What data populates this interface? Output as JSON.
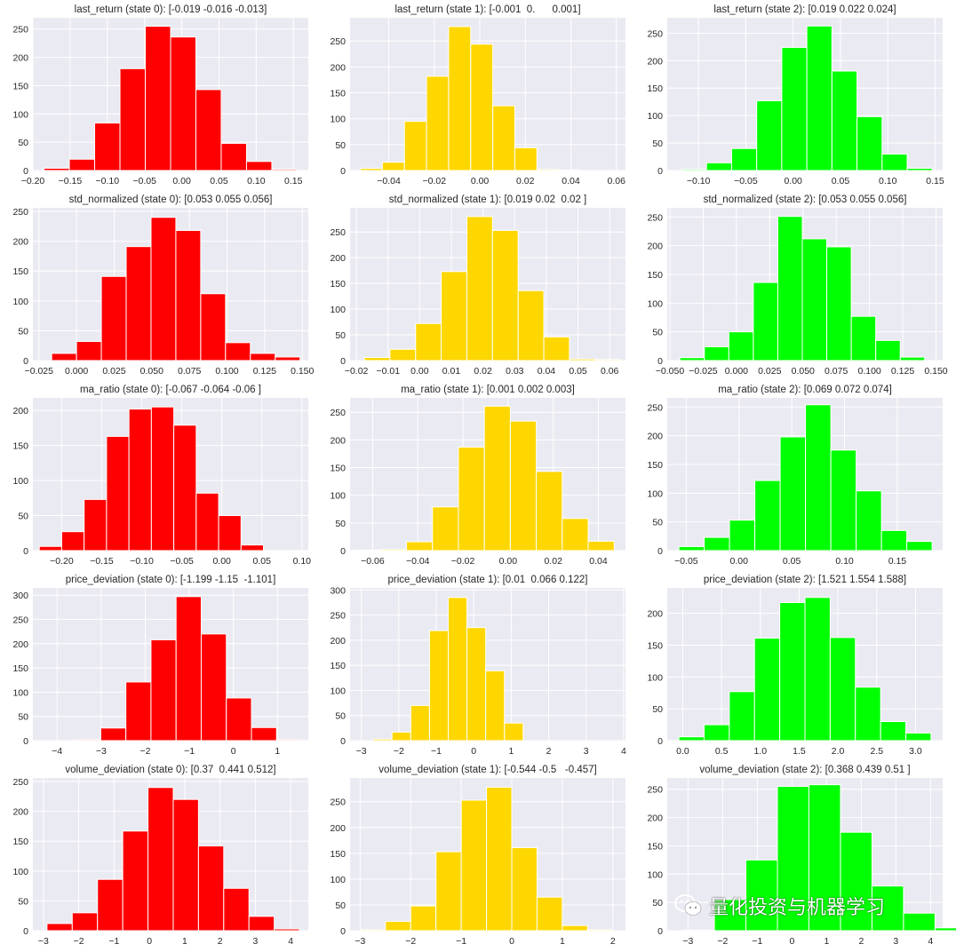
{
  "colors": {
    "state0": "#ff0000",
    "state1": "#ffd700",
    "state2": "#00ff00"
  },
  "watermark": {
    "text": "量化投资与机器学习",
    "icon": "wechat-icon"
  },
  "chart_data": [
    {
      "type": "bar",
      "title": "last_return (state 0): [-0.019 -0.016 -0.013]",
      "color": "state0",
      "edges": [
        -0.185,
        -0.151,
        -0.117,
        -0.083,
        -0.049,
        -0.015,
        0.019,
        0.053,
        0.087,
        0.121,
        0.155
      ],
      "values": [
        4,
        20,
        84,
        180,
        255,
        236,
        143,
        48,
        16,
        2
      ],
      "xlim": [
        -0.2,
        0.17
      ],
      "ylim": [
        0,
        270
      ],
      "xticks": [
        -0.2,
        -0.15,
        -0.1,
        -0.05,
        0.0,
        0.05,
        0.1,
        0.15
      ],
      "xtick_labels": [
        "−0.20",
        "−0.15",
        "−0.10",
        "−0.05",
        "0.00",
        "0.05",
        "0.10",
        "0.15"
      ],
      "yticks": [
        0,
        50,
        100,
        150,
        200,
        250
      ],
      "ytick_labels": [
        "0",
        "50",
        "100",
        "150",
        "200",
        "250"
      ]
    },
    {
      "type": "bar",
      "title": "last_return (state 1): [-0.001  0.      0.001]",
      "color": "state1",
      "edges": [
        -0.0525,
        -0.0428,
        -0.0331,
        -0.0234,
        -0.0137,
        -0.004,
        0.0057,
        0.0154,
        0.0251,
        0.0348,
        0.0445,
        0.0542,
        0.0639
      ],
      "values": [
        4,
        16,
        95,
        182,
        278,
        244,
        125,
        44,
        2,
        1,
        0,
        0
      ],
      "xlim": [
        -0.057,
        0.064
      ],
      "ylim": [
        0,
        295
      ],
      "xticks": [
        -0.04,
        -0.02,
        0.0,
        0.02,
        0.04,
        0.06
      ],
      "xtick_labels": [
        "−0.04",
        "−0.02",
        "0.00",
        "0.02",
        "0.04",
        "0.06"
      ],
      "yticks": [
        0,
        50,
        100,
        150,
        200,
        250
      ],
      "ytick_labels": [
        "0",
        "50",
        "100",
        "150",
        "200",
        "250"
      ]
    },
    {
      "type": "bar",
      "title": "last_return (state 2): [0.019 0.022 0.024]",
      "color": "state2",
      "edges": [
        -0.118,
        -0.0915,
        -0.065,
        -0.0385,
        -0.012,
        0.0145,
        0.041,
        0.0675,
        0.094,
        0.1205,
        0.147
      ],
      "values": [
        2,
        14,
        40,
        127,
        224,
        263,
        181,
        98,
        30,
        4
      ],
      "xlim": [
        -0.133,
        0.158
      ],
      "ylim": [
        0,
        278
      ],
      "xticks": [
        -0.1,
        -0.05,
        0.0,
        0.05,
        0.1,
        0.15
      ],
      "xtick_labels": [
        "−0.10",
        "−0.05",
        "0.00",
        "0.05",
        "0.10",
        "0.15"
      ],
      "yticks": [
        0,
        50,
        100,
        150,
        200,
        250
      ],
      "ytick_labels": [
        "0",
        "50",
        "100",
        "150",
        "200",
        "250"
      ]
    },
    {
      "type": "bar",
      "title": "std_normalized (state 0): [0.053 0.055 0.056]",
      "color": "state0",
      "edges": [
        -0.0165,
        0.0,
        0.0165,
        0.033,
        0.0495,
        0.066,
        0.0825,
        0.099,
        0.1155,
        0.132,
        0.1485
      ],
      "values": [
        12,
        32,
        141,
        191,
        240,
        218,
        112,
        30,
        12,
        6
      ],
      "xlim": [
        -0.029,
        0.154
      ],
      "ylim": [
        0,
        256
      ],
      "xticks": [
        -0.025,
        0.0,
        0.025,
        0.05,
        0.075,
        0.1,
        0.125,
        0.15
      ],
      "xtick_labels": [
        "−0.025",
        "0.000",
        "0.025",
        "0.050",
        "0.075",
        "0.100",
        "0.125",
        "0.150"
      ],
      "yticks": [
        0,
        50,
        100,
        150,
        200,
        250
      ],
      "ytick_labels": [
        "0",
        "50",
        "100",
        "150",
        "200",
        "250"
      ]
    },
    {
      "type": "bar",
      "title": "std_normalized (state 1): [0.019 0.02  0.02 ]",
      "color": "state1",
      "edges": [
        -0.0175,
        -0.0094,
        -0.0013,
        0.0068,
        0.0149,
        0.023,
        0.0311,
        0.0392,
        0.0473,
        0.0554,
        0.0635
      ],
      "values": [
        6,
        22,
        72,
        173,
        280,
        253,
        136,
        46,
        3,
        2
      ],
      "xlim": [
        -0.022,
        0.065
      ],
      "ylim": [
        0,
        297
      ],
      "xticks": [
        -0.02,
        -0.01,
        0.0,
        0.01,
        0.02,
        0.03,
        0.04,
        0.05,
        0.06
      ],
      "xtick_labels": [
        "−0.02",
        "−0.01",
        "0.00",
        "0.01",
        "0.02",
        "0.03",
        "0.04",
        "0.05",
        "0.06"
      ],
      "yticks": [
        0,
        50,
        100,
        150,
        200,
        250
      ],
      "ytick_labels": [
        "0",
        "50",
        "100",
        "150",
        "200",
        "250"
      ]
    },
    {
      "type": "bar",
      "title": "std_normalized (state 2): [0.053 0.055 0.056]",
      "color": "state2",
      "edges": [
        -0.0425,
        -0.0241,
        -0.0057,
        0.0127,
        0.0311,
        0.0495,
        0.0679,
        0.0863,
        0.1047,
        0.1231,
        0.1415
      ],
      "values": [
        5,
        24,
        50,
        136,
        251,
        212,
        198,
        77,
        35,
        6
      ],
      "xlim": [
        -0.052,
        0.155
      ],
      "ylim": [
        0,
        266
      ],
      "xticks": [
        -0.05,
        -0.025,
        0.0,
        0.025,
        0.05,
        0.075,
        0.1,
        0.125,
        0.15
      ],
      "xtick_labels": [
        "−0.050",
        "−0.025",
        "0.000",
        "0.025",
        "0.050",
        "0.075",
        "0.100",
        "0.125",
        "0.150"
      ],
      "yticks": [
        0,
        50,
        100,
        150,
        200,
        250
      ],
      "ytick_labels": [
        "0",
        "50",
        "100",
        "150",
        "200",
        "250"
      ]
    },
    {
      "type": "bar",
      "title": "ma_ratio (state 0): [-0.067 -0.064 -0.06 ]",
      "color": "state0",
      "edges": [
        -0.228,
        -0.2,
        -0.172,
        -0.144,
        -0.116,
        -0.088,
        -0.06,
        -0.032,
        -0.004,
        0.024,
        0.052,
        0.08,
        0.1
      ],
      "values": [
        6,
        27,
        73,
        163,
        202,
        205,
        179,
        82,
        50,
        8,
        0,
        0
      ],
      "xlim": [
        -0.236,
        0.108
      ],
      "ylim": [
        0,
        218
      ],
      "xticks": [
        -0.2,
        -0.15,
        -0.1,
        -0.05,
        0.0,
        0.05,
        0.1
      ],
      "xtick_labels": [
        "−0.20",
        "−0.15",
        "−0.10",
        "−0.05",
        "0.00",
        "0.05",
        "0.10"
      ],
      "yticks": [
        0,
        50,
        100,
        150,
        200
      ],
      "ytick_labels": [
        "0",
        "50",
        "100",
        "150",
        "200"
      ]
    },
    {
      "type": "bar",
      "title": "ma_ratio (state 1): [0.001 0.002 0.003]",
      "color": "state1",
      "edges": [
        -0.068,
        -0.0565,
        -0.045,
        -0.0335,
        -0.022,
        -0.0105,
        0.001,
        0.0125,
        0.024,
        0.0355,
        0.047
      ],
      "values": [
        1,
        2,
        16,
        79,
        187,
        261,
        234,
        143,
        58,
        17
      ],
      "xlim": [
        -0.07,
        0.052
      ],
      "ylim": [
        0,
        276
      ],
      "xticks": [
        -0.06,
        -0.04,
        -0.02,
        0.0,
        0.02,
        0.04
      ],
      "xtick_labels": [
        "−0.06",
        "−0.04",
        "−0.02",
        "0.00",
        "0.02",
        "0.04"
      ],
      "yticks": [
        0,
        50,
        100,
        150,
        200,
        250
      ],
      "ytick_labels": [
        "0",
        "50",
        "100",
        "150",
        "200",
        "250"
      ]
    },
    {
      "type": "bar",
      "title": "ma_ratio (state 2): [0.069 0.072 0.074]",
      "color": "state2",
      "edges": [
        -0.057,
        -0.033,
        -0.009,
        0.015,
        0.039,
        0.063,
        0.087,
        0.111,
        0.135,
        0.159,
        0.183
      ],
      "values": [
        7,
        23,
        53,
        122,
        198,
        254,
        175,
        104,
        35,
        16
      ],
      "xlim": [
        -0.068,
        0.193
      ],
      "ylim": [
        0,
        266
      ],
      "xticks": [
        -0.05,
        0.0,
        0.05,
        0.1,
        0.15
      ],
      "xtick_labels": [
        "−0.05",
        "0.00",
        "0.05",
        "0.10",
        "0.15"
      ],
      "yticks": [
        0,
        50,
        100,
        150,
        200,
        250
      ],
      "ytick_labels": [
        "0",
        "50",
        "100",
        "150",
        "200",
        "250"
      ]
    },
    {
      "type": "bar",
      "title": "price_deviation (state 0): [-1.199 -1.15  -1.101]",
      "color": "state0",
      "edges": [
        -4.15,
        -3.58,
        -3.01,
        -2.44,
        -1.87,
        -1.3,
        -0.73,
        -0.16,
        0.41,
        0.98,
        1.55
      ],
      "values": [
        0,
        2,
        26,
        121,
        208,
        297,
        220,
        88,
        27,
        2
      ],
      "xlim": [
        -4.55,
        1.7
      ],
      "ylim": [
        0,
        315
      ],
      "xticks": [
        -4,
        -3,
        -2,
        -1,
        0,
        1
      ],
      "xtick_labels": [
        "−4",
        "−3",
        "−2",
        "−1",
        "0",
        "1"
      ],
      "yticks": [
        0,
        50,
        100,
        150,
        200,
        250,
        300
      ],
      "ytick_labels": [
        "0",
        "50",
        "100",
        "150",
        "200",
        "250",
        "300"
      ]
    },
    {
      "type": "bar",
      "title": "price_deviation (state 1): [0.01  0.066 0.122]",
      "color": "state1",
      "edges": [
        -2.68,
        -2.18,
        -1.68,
        -1.18,
        -0.68,
        -0.18,
        0.32,
        0.82,
        1.32,
        1.82,
        2.32,
        2.82,
        3.32
      ],
      "values": [
        3,
        17,
        70,
        219,
        285,
        225,
        139,
        35,
        0,
        0,
        0,
        0
      ],
      "xlim": [
        -3.3,
        4.05
      ],
      "ylim": [
        0,
        304
      ],
      "xticks": [
        -3,
        -2,
        -1,
        0,
        1,
        2,
        3,
        4
      ],
      "xtick_labels": [
        "−3",
        "−2",
        "−1",
        "0",
        "1",
        "2",
        "3",
        "4"
      ],
      "yticks": [
        0,
        50,
        100,
        150,
        200,
        250,
        300
      ],
      "ytick_labels": [
        "0",
        "50",
        "100",
        "150",
        "200",
        "250",
        "300"
      ]
    },
    {
      "type": "bar",
      "title": "price_deviation (state 2): [1.521 1.554 1.588]",
      "color": "state2",
      "edges": [
        -0.05,
        0.275,
        0.6,
        0.925,
        1.25,
        1.575,
        1.9,
        2.225,
        2.55,
        2.875,
        3.2
      ],
      "values": [
        6,
        25,
        77,
        161,
        217,
        225,
        162,
        84,
        30,
        12
      ],
      "xlim": [
        -0.2,
        3.35
      ],
      "ylim": [
        0,
        240
      ],
      "xticks": [
        0.0,
        0.5,
        1.0,
        1.5,
        2.0,
        2.5,
        3.0
      ],
      "xtick_labels": [
        "0.0",
        "0.5",
        "1.0",
        "1.5",
        "2.0",
        "2.5",
        "3.0"
      ],
      "yticks": [
        0,
        50,
        100,
        150,
        200
      ],
      "ytick_labels": [
        "0",
        "50",
        "100",
        "150",
        "200"
      ]
    },
    {
      "type": "bar",
      "title": "volume_deviation (state 0): [0.37  0.441 0.512]",
      "color": "state0",
      "edges": [
        -2.9,
        -2.185,
        -1.47,
        -0.755,
        -0.04,
        0.675,
        1.39,
        2.105,
        2.82,
        3.535,
        4.25
      ],
      "values": [
        12,
        30,
        86,
        167,
        240,
        220,
        142,
        71,
        24,
        3
      ],
      "xlim": [
        -3.3,
        4.5
      ],
      "ylim": [
        0,
        256
      ],
      "xticks": [
        -3,
        -2,
        -1,
        0,
        1,
        2,
        3,
        4
      ],
      "xtick_labels": [
        "−3",
        "−2",
        "−1",
        "0",
        "1",
        "2",
        "3",
        "4"
      ],
      "yticks": [
        0,
        50,
        100,
        150,
        200,
        250
      ],
      "ytick_labels": [
        "0",
        "50",
        "100",
        "150",
        "200",
        "250"
      ]
    },
    {
      "type": "bar",
      "title": "volume_deviation (state 1): [-0.544 -0.5   -0.457]",
      "color": "state1",
      "edges": [
        -3.0,
        -2.5,
        -2.0,
        -1.5,
        -1.0,
        -0.5,
        0.0,
        0.5,
        1.0,
        1.5,
        2.0
      ],
      "values": [
        2,
        18,
        48,
        153,
        253,
        278,
        161,
        65,
        10,
        2
      ],
      "xlim": [
        -3.2,
        2.25
      ],
      "ylim": [
        0,
        296
      ],
      "xticks": [
        -3,
        -2,
        -1,
        0,
        1,
        2
      ],
      "xtick_labels": [
        "−3",
        "−2",
        "−1",
        "0",
        "1",
        "2"
      ],
      "yticks": [
        0,
        50,
        100,
        150,
        200,
        250
      ],
      "ytick_labels": [
        "0",
        "50",
        "100",
        "150",
        "200",
        "250"
      ]
    },
    {
      "type": "bar",
      "title": "volume_deviation (state 2): [0.368 0.439 0.51 ]",
      "color": "state2",
      "edges": [
        -3.15,
        -2.24,
        -1.33,
        -0.42,
        0.49,
        1.4,
        2.31,
        3.22,
        4.13,
        5.04,
        5.95
      ],
      "values": [
        1,
        55,
        125,
        255,
        258,
        174,
        79,
        31,
        5,
        0
      ],
      "xlim": [
        -3.6,
        4.35
      ],
      "ylim": [
        0,
        270
      ],
      "xticks": [
        -3,
        -2,
        -1,
        0,
        1,
        2,
        3,
        4
      ],
      "xtick_labels": [
        "−3",
        "−2",
        "−1",
        "0",
        "1",
        "2",
        "3",
        "4"
      ],
      "yticks": [
        0,
        50,
        100,
        150,
        200,
        250
      ],
      "ytick_labels": [
        "0",
        "50",
        "100",
        "150",
        "200",
        "250"
      ]
    }
  ]
}
